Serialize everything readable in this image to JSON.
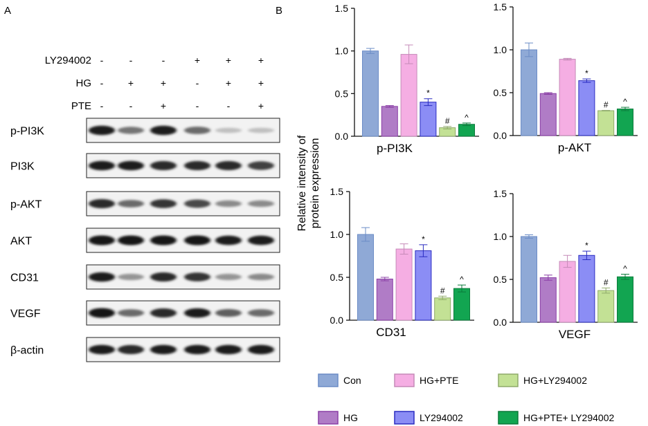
{
  "panel_a": {
    "label": "A",
    "conditions": [
      {
        "name": "LY294002",
        "signs": [
          "-",
          "-",
          "-",
          "+",
          "+",
          "+"
        ]
      },
      {
        "name": "HG",
        "signs": [
          "-",
          "+",
          "+",
          "-",
          "+",
          "+"
        ]
      },
      {
        "name": "PTE",
        "signs": [
          "-",
          "-",
          "+",
          "-",
          "-",
          "+"
        ]
      }
    ],
    "blots": [
      {
        "name": "p-PI3K",
        "intensity": [
          0.95,
          0.55,
          0.95,
          0.6,
          0.2,
          0.2
        ]
      },
      {
        "name": "PI3K",
        "intensity": [
          0.95,
          0.95,
          0.9,
          0.9,
          0.9,
          0.8
        ]
      },
      {
        "name": "p-AKT",
        "intensity": [
          0.9,
          0.6,
          0.85,
          0.75,
          0.45,
          0.45
        ]
      },
      {
        "name": "AKT",
        "intensity": [
          1,
          1,
          1,
          1,
          0.95,
          0.95
        ]
      },
      {
        "name": "CD31",
        "intensity": [
          0.95,
          0.4,
          0.9,
          0.85,
          0.4,
          0.45
        ]
      },
      {
        "name": "VEGF",
        "intensity": [
          1,
          0.6,
          0.9,
          0.95,
          0.65,
          0.6
        ]
      },
      {
        "name": "β-actin",
        "intensity": [
          0.95,
          0.9,
          0.95,
          0.95,
          0.95,
          0.95
        ]
      }
    ]
  },
  "panel_b": {
    "label": "B",
    "ylabel_line1": "Relative intensity of",
    "ylabel_line2": "protein expression"
  },
  "legend": [
    {
      "name": "Con",
      "color": "#8fa9d6",
      "border": "#6b8cc6"
    },
    {
      "name": "HG+PTE",
      "color": "#f5aee3",
      "border": "#c58ab8"
    },
    {
      "name": "HG+LY294002",
      "color": "#c3e195",
      "border": "#8faa6a"
    },
    {
      "name": "HG",
      "color": "#b07cc6",
      "border": "#8a3ea6"
    },
    {
      "name": "LY294002",
      "color": "#8b8df5",
      "border": "#2a2cc0"
    },
    {
      "name": "HG+PTE+ LY294002",
      "color": "#12a551",
      "border": "#0b7a3a"
    }
  ],
  "chart_data": [
    {
      "type": "bar",
      "title": "p-PI3K",
      "categories": [
        "Con",
        "HG",
        "HG+PTE",
        "LY294002",
        "HG+LY294002",
        "HG+PTE+LY294002"
      ],
      "values": [
        1.0,
        0.35,
        0.96,
        0.4,
        0.1,
        0.14
      ],
      "errors": [
        0.03,
        0.01,
        0.11,
        0.04,
        0.015,
        0.015
      ],
      "annotations": [
        "",
        "",
        "",
        "*",
        "#",
        "^"
      ],
      "yticks": [
        "0.0",
        "0.5",
        "1.0",
        "1.5"
      ],
      "ylim": [
        0,
        1.5
      ],
      "ylabel": "Relative intensity of protein expression"
    },
    {
      "type": "bar",
      "title": "p-AKT",
      "categories": [
        "Con",
        "HG",
        "HG+PTE",
        "LY294002",
        "HG+LY294002",
        "HG+PTE+LY294002"
      ],
      "values": [
        1.0,
        0.49,
        0.89,
        0.64,
        0.29,
        0.31
      ],
      "errors": [
        0.08,
        0.01,
        0.01,
        0.02,
        0.003,
        0.02
      ],
      "annotations": [
        "",
        "",
        "",
        "*",
        "#",
        "^"
      ],
      "yticks": [
        "0.0",
        "0.5",
        "1.0",
        "1.5"
      ],
      "ylim": [
        0,
        1.5
      ]
    },
    {
      "type": "bar",
      "title": "CD31",
      "categories": [
        "Con",
        "HG",
        "HG+PTE",
        "LY294002",
        "HG+LY294002",
        "HG+PTE+LY294002"
      ],
      "values": [
        1.0,
        0.48,
        0.83,
        0.81,
        0.26,
        0.37
      ],
      "errors": [
        0.08,
        0.02,
        0.06,
        0.07,
        0.02,
        0.04
      ],
      "annotations": [
        "",
        "",
        "",
        "*",
        "#",
        "^"
      ],
      "yticks": [
        "0.0",
        "0.5",
        "1.0",
        "1.5"
      ],
      "ylim": [
        0,
        1.5
      ]
    },
    {
      "type": "bar",
      "title": "VEGF",
      "categories": [
        "Con",
        "HG",
        "HG+PTE",
        "LY294002",
        "HG+LY294002",
        "HG+PTE+LY294002"
      ],
      "values": [
        1.0,
        0.52,
        0.71,
        0.78,
        0.37,
        0.53
      ],
      "errors": [
        0.02,
        0.03,
        0.07,
        0.05,
        0.03,
        0.03
      ],
      "annotations": [
        "",
        "",
        "",
        "*",
        "#",
        "^"
      ],
      "yticks": [
        "0.0",
        "0.5",
        "1.0",
        "1.5"
      ],
      "ylim": [
        0,
        1.5
      ]
    }
  ]
}
